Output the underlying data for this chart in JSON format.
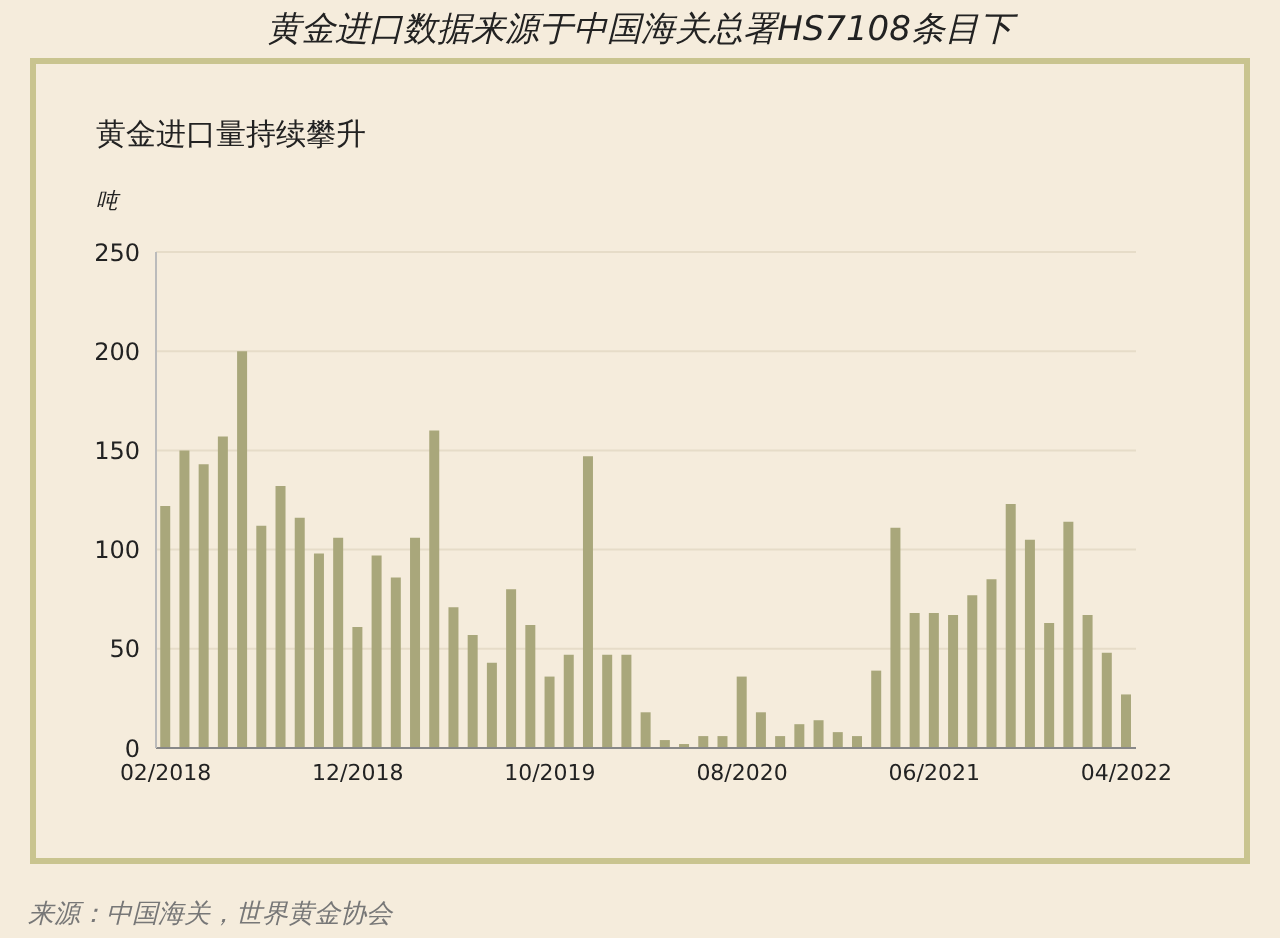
{
  "chart_data": {
    "type": "bar",
    "title": "黄金进口数据来源于中国海关总署HS7108条目下",
    "subtitle": "黄金进口量持续攀升",
    "ylabel": "吨",
    "categories": [
      "02/2018",
      null,
      null,
      null,
      null,
      null,
      null,
      null,
      null,
      null,
      "12/2018",
      null,
      null,
      null,
      null,
      null,
      null,
      null,
      null,
      null,
      "10/2019",
      null,
      null,
      null,
      null,
      null,
      null,
      null,
      null,
      null,
      "08/2020",
      null,
      null,
      null,
      null,
      null,
      null,
      null,
      null,
      null,
      "06/2021",
      null,
      null,
      null,
      null,
      null,
      null,
      null,
      null,
      null,
      "04/2022"
    ],
    "values": [
      122,
      150,
      143,
      157,
      200,
      112,
      132,
      116,
      98,
      106,
      61,
      97,
      86,
      106,
      160,
      71,
      57,
      43,
      80,
      62,
      36,
      47,
      147,
      47,
      47,
      18,
      4,
      2,
      6,
      6,
      36,
      18,
      6,
      12,
      14,
      8,
      6,
      39,
      111,
      68,
      68,
      67,
      77,
      85,
      123,
      105,
      63,
      114,
      67,
      48,
      27
    ],
    "color": "#a9a77b",
    "ylim": [
      0,
      250
    ],
    "yticks": [
      0,
      50,
      100,
      150,
      200,
      250
    ],
    "grid": "y",
    "annotations": [
      "来源：中国海关，世界黄金协会"
    ]
  }
}
